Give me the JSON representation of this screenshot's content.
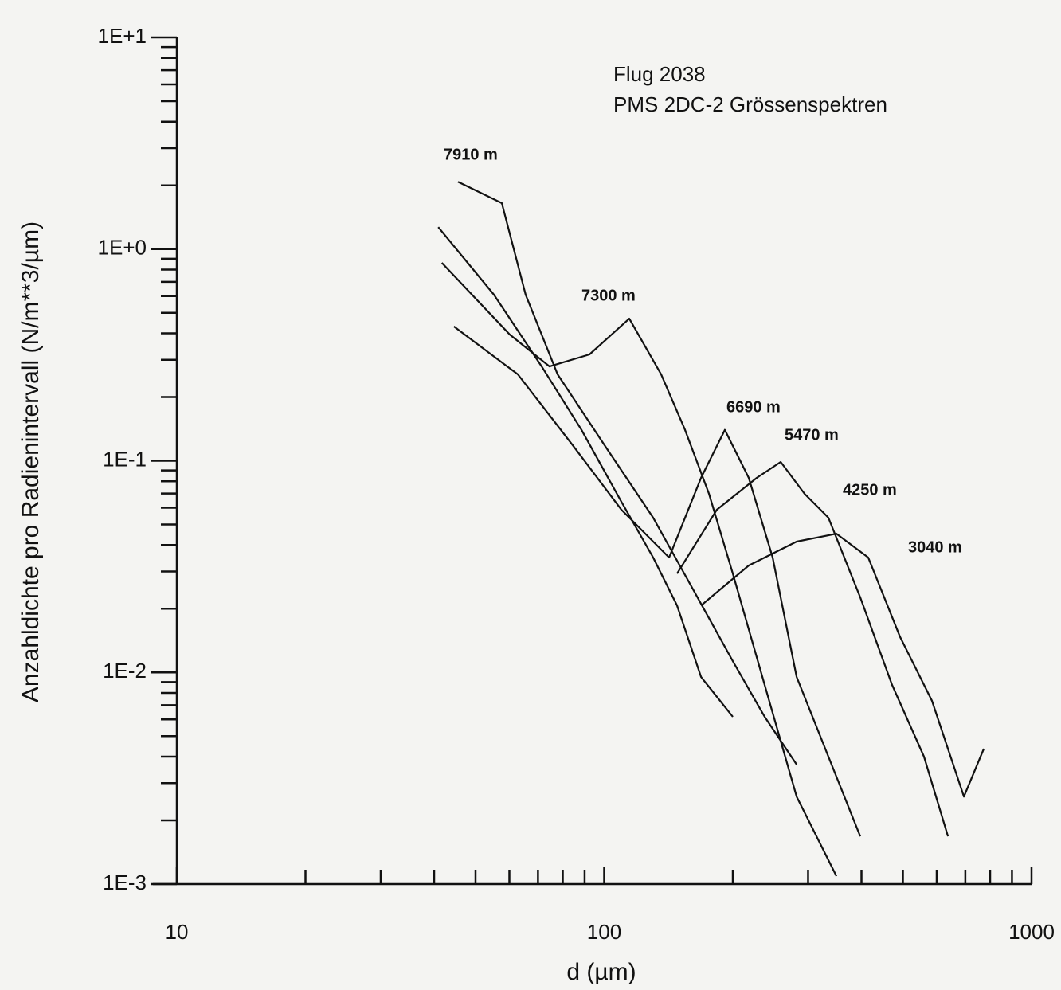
{
  "chart_data": {
    "type": "line",
    "annotations": [
      "Flug 2038",
      "PMS 2DC-2 Grössenspektren"
    ],
    "x_label": "d (µm)",
    "y_label": "Anzahldichte pro Radienintervall (N/m**3/µm)",
    "log_x": true,
    "log_y": true,
    "grid": false,
    "xlim": [
      10,
      1000
    ],
    "xticks": [
      10,
      100,
      1000
    ],
    "ylim": [
      0.001,
      10
    ],
    "yticks": [
      {
        "value": 0.001,
        "label": "1E-3"
      },
      {
        "value": 0.01,
        "label": "1E-2"
      },
      {
        "value": 0.1,
        "label": "1E-1"
      },
      {
        "value": 1,
        "label": "1E+0"
      },
      {
        "value": 10,
        "label": "1E+1"
      }
    ],
    "series": [
      {
        "name": "7910 m",
        "color": "#111111",
        "x": [
          45.5,
          57.6,
          65.5,
          77.8,
          100.6,
          130.2,
          161.4,
          200.0,
          237.5,
          282.0
        ],
        "values": [
          2.08,
          1.65,
          0.609,
          0.256,
          0.117,
          0.0538,
          0.0247,
          0.0113,
          0.00617,
          0.00367
        ]
      },
      {
        "name": "7300 m",
        "color": "#111111",
        "x": [
          40.9,
          55.2,
          71.4,
          88.5,
          109.7,
          130.2,
          148.1,
          168.5,
          200.0
        ],
        "values": [
          1.27,
          0.609,
          0.279,
          0.14,
          0.064,
          0.0349,
          0.0207,
          0.00952,
          0.00617
        ]
      },
      {
        "name": "6690 m",
        "color": "#111111",
        "x": [
          41.7,
          60.1,
          74.5,
          92.4,
          114.5,
          135.9,
          154.6,
          175.9,
          200.0,
          237.5,
          282.0,
          349.5
        ],
        "values": [
          0.861,
          0.395,
          0.279,
          0.318,
          0.469,
          0.256,
          0.14,
          0.0698,
          0.0293,
          0.00872,
          0.00259,
          0.00109
        ]
      },
      {
        "name": "5470 m",
        "color": "#111111",
        "x": [
          44.5,
          62.8,
          84.8,
          109.7,
          141.9,
          168.5,
          191.6,
          217.9,
          247.9,
          282.0,
          334.8,
          397.5
        ],
        "values": [
          0.431,
          0.256,
          0.117,
          0.0587,
          0.0349,
          0.083,
          0.14,
          0.083,
          0.0349,
          0.00952,
          0.004,
          0.00168
        ]
      },
      {
        "name": "4250 m",
        "color": "#111111",
        "x": [
          148.1,
          183.5,
          227.5,
          258.8,
          294.4,
          334.8,
          397.5,
          471.8,
          560.2,
          637.5
        ],
        "values": [
          0.0293,
          0.0587,
          0.083,
          0.0987,
          0.0698,
          0.0538,
          0.0226,
          0.00872,
          0.004,
          0.00168
        ]
      },
      {
        "name": "3040 m",
        "color": "#111111",
        "x": [
          168.5,
          217.9,
          282.0,
          349.5,
          414.9,
          492.6,
          584.8,
          694.6,
          773.3
        ],
        "values": [
          0.0207,
          0.032,
          0.0415,
          0.0452,
          0.0349,
          0.0147,
          0.00734,
          0.00259,
          0.00436
        ]
      }
    ]
  }
}
